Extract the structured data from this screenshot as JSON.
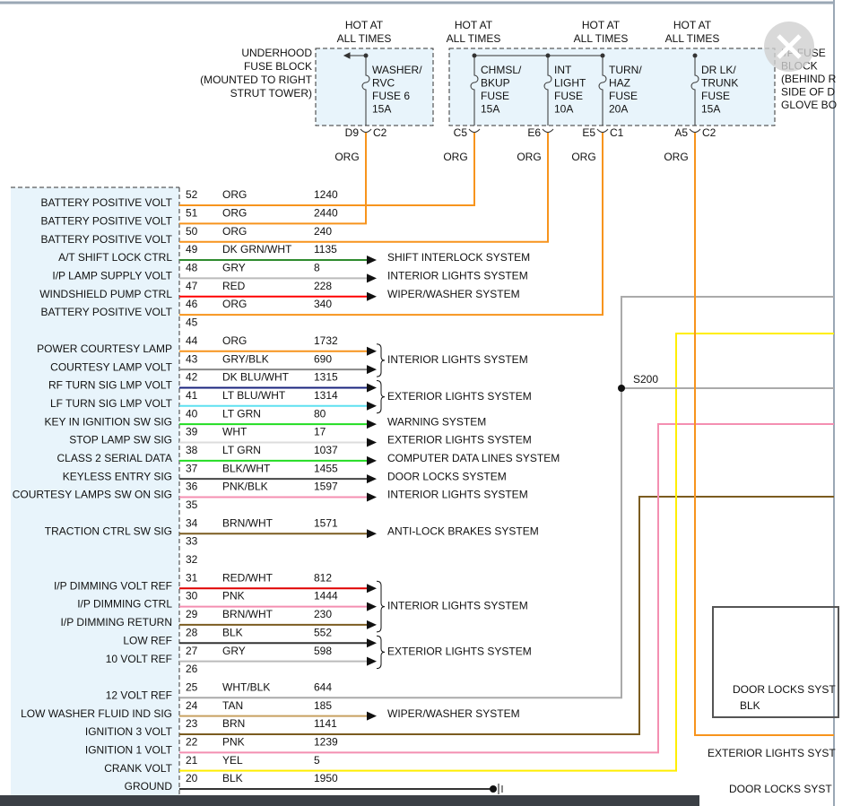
{
  "hot_labels": [
    [
      "HOT AT",
      "ALL TIMES"
    ],
    [
      "HOT AT",
      "ALL TIMES"
    ],
    [
      "HOT AT",
      "ALL TIMES"
    ],
    [
      "HOT AT",
      "ALL TIMES"
    ]
  ],
  "underhood_block": [
    "UNDERHOOD",
    "FUSE BLOCK",
    "(MOUNTED TO RIGHT",
    "STRUT TOWER)"
  ],
  "ip_block": [
    "I/P FUSE",
    "BLOCK",
    "(BEHIND R",
    "SIDE OF D",
    "GLOVE BO"
  ],
  "fuses": [
    {
      "name": [
        "WASHER/",
        "RVC",
        "FUSE 6",
        "15A"
      ],
      "pin": "D9",
      "conn": "C2",
      "wire": "ORG"
    },
    {
      "name": [
        "CHMSL/",
        "BKUP",
        "FUSE",
        "15A"
      ],
      "pin": "C5",
      "conn": null,
      "wire": "ORG"
    },
    {
      "name": [
        "INT",
        "LIGHT",
        "FUSE",
        "10A"
      ],
      "pin": "E6",
      "conn": null,
      "wire": "ORG"
    },
    {
      "name": [
        "TURN/",
        "HAZ",
        "FUSE",
        "20A"
      ],
      "pin": "E5",
      "conn": "C1",
      "wire": "ORG"
    },
    {
      "name": [
        "DR LK/",
        "TRUNK",
        "FUSE",
        "15A"
      ],
      "pin": "A5",
      "conn": "C2",
      "wire": "ORG"
    }
  ],
  "pins": [
    {
      "num": 52,
      "label": "BATTERY POSITIVE VOLT",
      "wire": "ORG",
      "circuit": 1240,
      "dest": null,
      "color": "#f7941d"
    },
    {
      "num": 51,
      "label": "BATTERY POSITIVE VOLT",
      "wire": "ORG",
      "circuit": 2440,
      "dest": null,
      "color": "#f7941d"
    },
    {
      "num": 50,
      "label": "BATTERY POSITIVE VOLT",
      "wire": "ORG",
      "circuit": 240,
      "dest": null,
      "color": "#f7941d"
    },
    {
      "num": 49,
      "label": "A/T SHIFT LOCK CTRL",
      "wire": "DK GRN/WHT",
      "circuit": 1135,
      "dest": "SHIFT INTERLOCK SYSTEM",
      "color": "#2e8b2e"
    },
    {
      "num": 48,
      "label": "I/P LAMP SUPPLY VOLT",
      "wire": "GRY",
      "circuit": 8,
      "dest": "INTERIOR LIGHTS SYSTEM",
      "color": "#bbbbbb"
    },
    {
      "num": 47,
      "label": "WINDSHIELD PUMP CTRL",
      "wire": "RED",
      "circuit": 228,
      "dest": "WIPER/WASHER SYSTEM",
      "color": "#ff0000"
    },
    {
      "num": 46,
      "label": "BATTERY POSITIVE VOLT",
      "wire": "ORG",
      "circuit": 340,
      "dest": null,
      "color": "#f7941d"
    },
    {
      "num": 45,
      "label": null,
      "wire": null,
      "circuit": null,
      "dest": null,
      "color": null
    },
    {
      "num": 44,
      "label": "POWER COURTESY LAMP",
      "wire": "ORG",
      "circuit": 1732,
      "dest": null,
      "color": "#f7941d"
    },
    {
      "num": 43,
      "label": "COURTESY LAMP VOLT",
      "wire": "GRY/BLK",
      "circuit": 690,
      "dest": null,
      "color": "#888888"
    },
    {
      "num": 42,
      "label": "RF TURN SIG LMP VOLT",
      "wire": "DK BLU/WHT",
      "circuit": 1315,
      "dest": null,
      "color": "#1a237e"
    },
    {
      "num": 41,
      "label": "LF TURN SIG LMP VOLT",
      "wire": "LT BLU/WHT",
      "circuit": 1314,
      "dest": null,
      "color": "#5ee0f0"
    },
    {
      "num": 40,
      "label": "KEY IN IGNITION SW SIG",
      "wire": "LT GRN",
      "circuit": 80,
      "dest": "WARNING SYSTEM",
      "color": "#22dd22"
    },
    {
      "num": 39,
      "label": "STOP LAMP SW SIG",
      "wire": "WHT",
      "circuit": 17,
      "dest": "EXTERIOR LIGHTS SYSTEM",
      "color": "#dddddd"
    },
    {
      "num": 38,
      "label": "CLASS 2 SERIAL DATA",
      "wire": "LT GRN",
      "circuit": 1037,
      "dest": "COMPUTER DATA LINES SYSTEM",
      "color": "#22dd22"
    },
    {
      "num": 37,
      "label": "KEYLESS ENTRY SIG",
      "wire": "BLK/WHT",
      "circuit": 1455,
      "dest": "DOOR LOCKS SYSTEM",
      "color": "#444444"
    },
    {
      "num": 36,
      "label": "COURTESY LAMPS SW ON SIG",
      "wire": "PNK/BLK",
      "circuit": 1597,
      "dest": "INTERIOR LIGHTS SYSTEM",
      "color": "#f48fb1"
    },
    {
      "num": 35,
      "label": null,
      "wire": null,
      "circuit": null,
      "dest": null,
      "color": null
    },
    {
      "num": 34,
      "label": "TRACTION CTRL SW SIG",
      "wire": "BRN/WHT",
      "circuit": 1571,
      "dest": "ANTI-LOCK BRAKES SYSTEM",
      "color": "#7b5c20"
    },
    {
      "num": 33,
      "label": null,
      "wire": null,
      "circuit": null,
      "dest": null,
      "color": null
    },
    {
      "num": 32,
      "label": null,
      "wire": null,
      "circuit": null,
      "dest": null,
      "color": null
    },
    {
      "num": 31,
      "label": "I/P DIMMING VOLT REF",
      "wire": "RED/WHT",
      "circuit": 812,
      "dest": null,
      "color": "#e00000"
    },
    {
      "num": 30,
      "label": "I/P DIMMING CTRL",
      "wire": "PNK",
      "circuit": 1444,
      "dest": null,
      "color": "#f48fb1"
    },
    {
      "num": 29,
      "label": "I/P DIMMING RETURN",
      "wire": "BRN/WHT",
      "circuit": 230,
      "dest": null,
      "color": "#7b5c20"
    },
    {
      "num": 28,
      "label": "LOW REF",
      "wire": "BLK",
      "circuit": 552,
      "dest": null,
      "color": "#333333"
    },
    {
      "num": 27,
      "label": "10 VOLT REF",
      "wire": "GRY",
      "circuit": 598,
      "dest": null,
      "color": "#bbbbbb"
    },
    {
      "num": 26,
      "label": null,
      "wire": null,
      "circuit": null,
      "dest": null,
      "color": null
    },
    {
      "num": 25,
      "label": "12 VOLT REF",
      "wire": "WHT/BLK",
      "circuit": 644,
      "dest": null,
      "color": "#aaaaaa"
    },
    {
      "num": 24,
      "label": "LOW WASHER FLUID IND SIG",
      "wire": "TAN",
      "circuit": 185,
      "dest": "WIPER/WASHER SYSTEM",
      "color": "#c8a060"
    },
    {
      "num": 23,
      "label": "IGNITION 3 VOLT",
      "wire": "BRN",
      "circuit": 1141,
      "dest": null,
      "color": "#7b5c20"
    },
    {
      "num": 22,
      "label": "IGNITION 1 VOLT",
      "wire": "PNK",
      "circuit": 1239,
      "dest": null,
      "color": "#f48fb1"
    },
    {
      "num": 21,
      "label": "CRANK VOLT",
      "wire": "YEL",
      "circuit": 5,
      "dest": null,
      "color": "#ffee00"
    },
    {
      "num": 20,
      "label": "GROUND",
      "wire": "BLK",
      "circuit": 1950,
      "dest": null,
      "color": "#333333"
    }
  ],
  "brackets": [
    "INTERIOR LIGHTS SYSTEM",
    "EXTERIOR LIGHTS SYSTEM",
    "INTERIOR LIGHTS SYSTEM",
    "EXTERIOR LIGHTS SYSTEM"
  ],
  "splice": "S200",
  "right_labels": {
    "box_title": "DOOR LOCKS SYST",
    "box_wire": "BLK",
    "exterior": "EXTERIOR LIGHTS SYST",
    "door_locks": "DOOR LOCKS SYST"
  }
}
